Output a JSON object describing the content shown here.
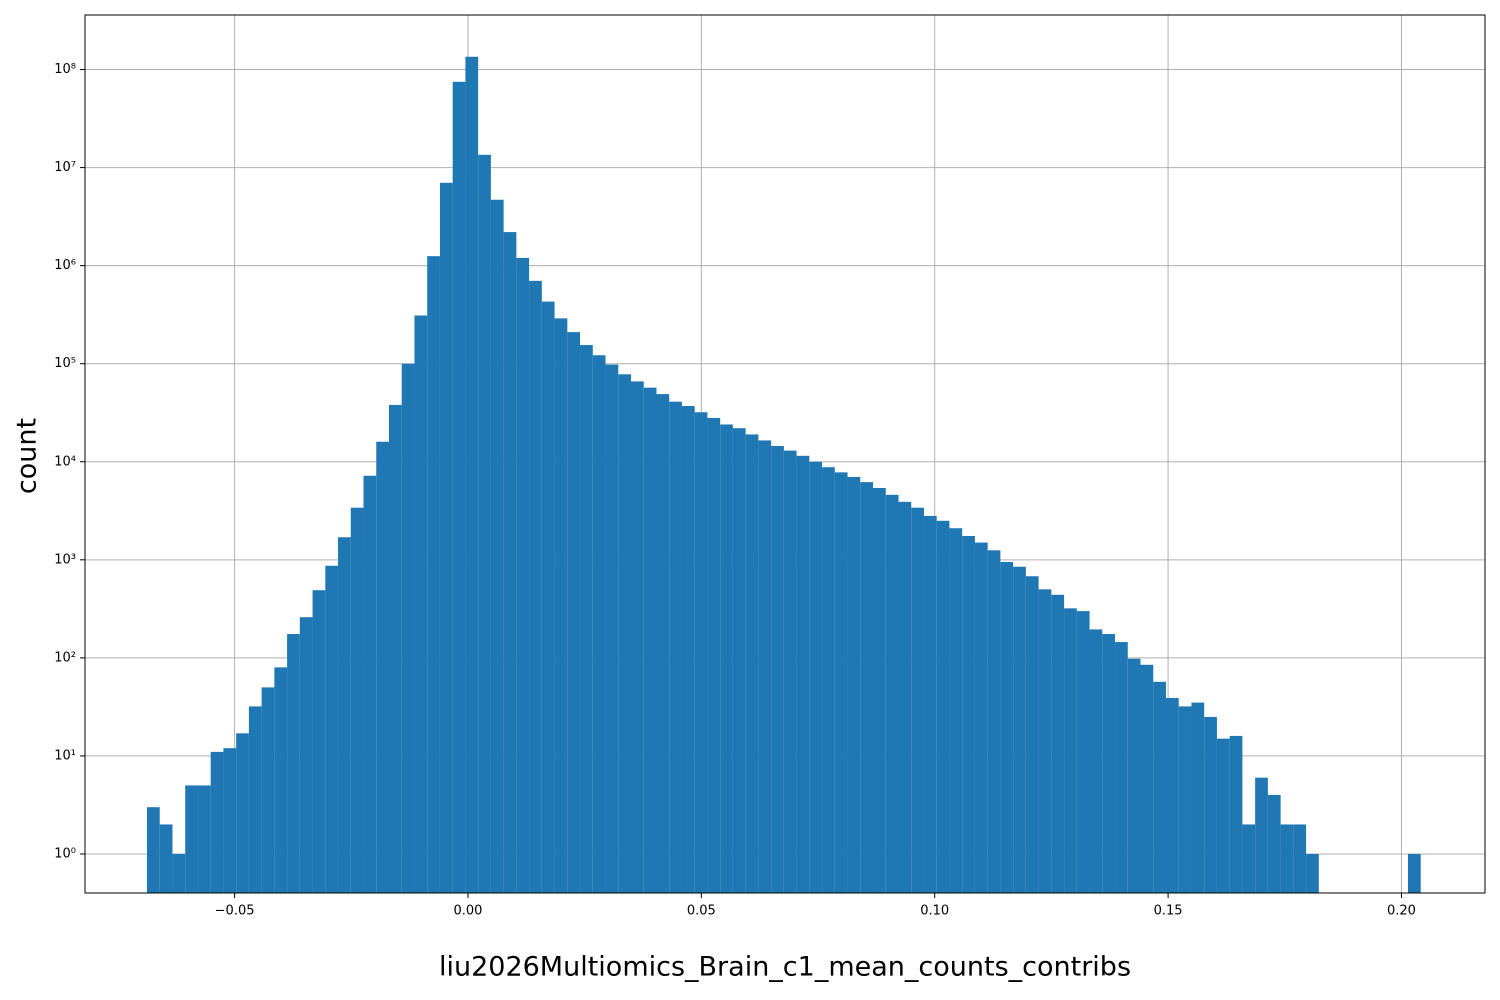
{
  "chart_data": {
    "type": "histogram",
    "xlabel": "liu2026Multiomics_Brain_c1_mean_counts_contribs",
    "ylabel": "count",
    "color": "#1f77b4",
    "log_scale_y": true,
    "grid": true,
    "bins": [
      -0.06877,
      -0.066041,
      -0.063312,
      -0.060583,
      -0.057854,
      -0.055125,
      -0.052396,
      -0.049667,
      -0.046938,
      -0.044209,
      -0.04148,
      -0.038751,
      -0.036022,
      -0.033293,
      -0.030564,
      -0.027835,
      -0.025106,
      -0.022377,
      -0.019648,
      -0.016919,
      -0.01419,
      -0.011461,
      -0.008732,
      -0.006003,
      -0.003274,
      -0.000545,
      0.002184,
      0.004913,
      0.007642,
      0.010371,
      0.0131,
      0.015829,
      0.018558,
      0.021287,
      0.024016,
      0.026745,
      0.029474,
      0.032203,
      0.034932,
      0.037661,
      0.04039,
      0.043119,
      0.045848,
      0.048577,
      0.051306,
      0.054035,
      0.056764,
      0.059493,
      0.062222,
      0.064951,
      0.06768,
      0.070409,
      0.073138,
      0.075867,
      0.078596,
      0.081325,
      0.084054,
      0.086783,
      0.089512,
      0.092241,
      0.09497,
      0.097699,
      0.100428,
      0.103157,
      0.105886,
      0.108615,
      0.111344,
      0.114073,
      0.116802,
      0.119531,
      0.12226,
      0.124989,
      0.127718,
      0.130447,
      0.133176,
      0.135905,
      0.138634,
      0.141363,
      0.144092,
      0.146821,
      0.14955,
      0.152279,
      0.155008,
      0.157737,
      0.160466,
      0.163195,
      0.165924,
      0.168653,
      0.171382,
      0.174111,
      0.17684,
      0.179569,
      0.182298,
      0.185027,
      0.187756,
      0.190485,
      0.193214,
      0.195943,
      0.198672,
      0.201401,
      0.20413
    ],
    "counts": [
      3,
      2,
      1,
      5,
      5,
      11,
      12,
      17,
      32,
      50,
      80,
      175,
      260,
      490,
      870,
      1700,
      3400,
      7200,
      16000,
      38000,
      100000,
      310000,
      1250000,
      7000000,
      75000000,
      135000000,
      13500000,
      4700000,
      2200000,
      1200000,
      700000,
      430000,
      290000,
      210000,
      155000,
      122000,
      98000,
      78000,
      66000,
      57000,
      49000,
      41000,
      37000,
      32000,
      28000,
      24000,
      22000,
      19000,
      16500,
      14500,
      13000,
      11500,
      10000,
      8800,
      7800,
      7000,
      6200,
      5400,
      4600,
      3900,
      3400,
      2800,
      2500,
      2100,
      1750,
      1500,
      1250,
      950,
      850,
      680,
      500,
      440,
      320,
      300,
      195,
      175,
      145,
      98,
      85,
      57,
      39,
      32,
      35,
      25,
      15,
      16,
      2,
      6,
      4,
      2,
      2,
      1,
      0,
      0,
      0,
      0,
      0,
      0,
      0,
      1
    ],
    "xlim": [
      -0.08205,
      0.2179
    ],
    "ylim": [
      0.4,
      360000000
    ],
    "xticks": [
      {
        "value": -0.05,
        "label": "−0.05"
      },
      {
        "value": 0,
        "label": "0.00"
      },
      {
        "value": 0.05,
        "label": "0.05"
      },
      {
        "value": 0.1,
        "label": "0.10"
      },
      {
        "value": 0.15,
        "label": "0.15"
      },
      {
        "value": 0.2,
        "label": "0.20"
      }
    ],
    "yticks": [
      {
        "value": 1,
        "label": "10⁰"
      },
      {
        "value": 10,
        "label": "10¹"
      },
      {
        "value": 100,
        "label": "10²"
      },
      {
        "value": 1000,
        "label": "10³"
      },
      {
        "value": 10000,
        "label": "10⁴"
      },
      {
        "value": 100000,
        "label": "10⁵"
      },
      {
        "value": 1000000,
        "label": "10⁶"
      },
      {
        "value": 10000000,
        "label": "10⁷"
      },
      {
        "value": 100000000,
        "label": "10⁸"
      }
    ]
  }
}
